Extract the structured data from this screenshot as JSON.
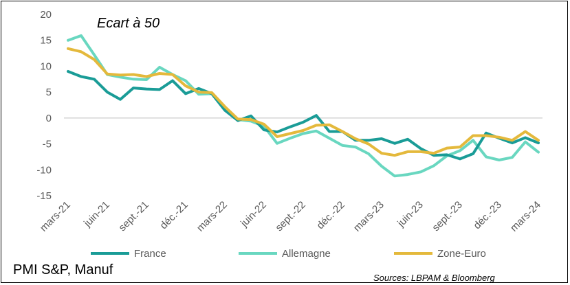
{
  "chart_data": {
    "type": "line",
    "annotation": "Ecart à 50",
    "ylim": [
      -15,
      20
    ],
    "yticks": [
      20,
      15,
      10,
      5,
      0,
      -5,
      -10,
      -15
    ],
    "ytick_labels": [
      "20",
      "15",
      "10",
      "5",
      "0",
      "-5",
      "-10",
      "-15"
    ],
    "grid": false,
    "legend_position": "bottom",
    "x": [
      "mars-21",
      "avr.-21",
      "mai-21",
      "juin-21",
      "juil.-21",
      "août-21",
      "sept.-21",
      "oct.-21",
      "nov.-21",
      "déc.-21",
      "janv.-22",
      "févr.-22",
      "mars-22",
      "avr.-22",
      "mai-22",
      "juin-22",
      "juil.-22",
      "août-22",
      "sept.-22",
      "oct.-22",
      "nov.-22",
      "déc.-22",
      "janv.-23",
      "févr.-23",
      "mars-23",
      "avr.-23",
      "mai-23",
      "juin-23",
      "juil.-23",
      "août-23",
      "sept.-23",
      "oct.-23",
      "nov.-23",
      "déc.-23",
      "janv.-24",
      "févr.-24",
      "mars-24"
    ],
    "xtick_labels": [
      "mars-21",
      "juin-21",
      "sept.-21",
      "déc.-21",
      "mars-22",
      "juin-22",
      "sept.-22",
      "déc.-22",
      "mars-23",
      "juin-23",
      "sept.-23",
      "déc.-23",
      "mars-24"
    ],
    "series": [
      {
        "name": "France",
        "color": "#1a9c97",
        "values": [
          9.0,
          8.0,
          7.5,
          5.0,
          3.6,
          5.8,
          5.6,
          5.5,
          7.2,
          4.7,
          5.7,
          4.7,
          1.5,
          -0.5,
          0.4,
          -2.3,
          -2.7,
          -1.7,
          -0.8,
          0.5,
          -2.6,
          -2.6,
          -4.3,
          -4.3,
          -4.0,
          -4.9,
          -4.1,
          -5.9,
          -7.2,
          -7.1,
          -7.9,
          -6.9,
          -2.9,
          -3.9,
          -4.8,
          -3.8,
          -4.8
        ]
      },
      {
        "name": "Allemagne",
        "color": "#69d7c0",
        "values": [
          15.0,
          15.9,
          12.2,
          8.4,
          7.9,
          7.5,
          7.4,
          9.8,
          8.4,
          7.2,
          4.6,
          4.7,
          2.1,
          -0.3,
          -0.6,
          -1.6,
          -4.9,
          -3.9,
          -3.0,
          -2.5,
          -3.9,
          -5.3,
          -5.6,
          -6.9,
          -9.3,
          -11.2,
          -10.9,
          -10.4,
          -9.2,
          -7.3,
          -6.3,
          -4.3,
          -7.5,
          -8.1,
          -7.6,
          -4.6,
          -6.6
        ]
      },
      {
        "name": "Zone-Euro",
        "color": "#e4b93c",
        "values": [
          13.4,
          12.8,
          11.3,
          8.5,
          8.3,
          8.4,
          8.0,
          8.6,
          8.4,
          6.2,
          5.0,
          4.9,
          2.2,
          -0.2,
          -0.3,
          -1.2,
          -3.6,
          -3.0,
          -2.4,
          -1.4,
          -1.3,
          -2.6,
          -4.0,
          -5.0,
          -6.8,
          -7.2,
          -6.5,
          -6.5,
          -6.8,
          -5.8,
          -5.6,
          -3.4,
          -3.4,
          -3.7,
          -4.3,
          -2.6,
          -4.3
        ]
      }
    ]
  },
  "footer": {
    "title": "PMI S&P, Manuf",
    "source": "Sources: LBPAM & Bloomberg"
  }
}
